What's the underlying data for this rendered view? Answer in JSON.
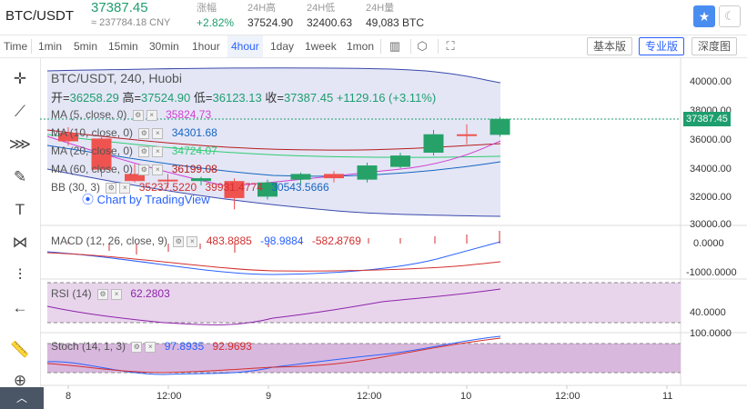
{
  "header": {
    "pair": "BTC/USDT",
    "price": "37387.45",
    "cny": "≈ 237784.18 CNY",
    "stats": [
      {
        "label": "涨幅",
        "value": "+2.82%",
        "up": true
      },
      {
        "label": "24H高",
        "value": "37524.90",
        "up": false
      },
      {
        "label": "24H低",
        "value": "32400.63",
        "up": false
      },
      {
        "label": "24H量",
        "value": "49,083 BTC",
        "up": false
      }
    ],
    "star_icon": "star-icon",
    "theme_icon": "moon-icon"
  },
  "toolbar": {
    "intervals": [
      "Time",
      "1min",
      "5min",
      "15min",
      "30min",
      "1hour",
      "4hour",
      "1day",
      "1week",
      "1mon"
    ],
    "active_interval": "4hour",
    "icons": [
      "candles-icon",
      "hexagon-settings-icon",
      "fullscreen-icon"
    ],
    "views": [
      "基本版",
      "专业版",
      "深度图"
    ],
    "active_view": "专业版"
  },
  "left_tools": [
    "crosshair-icon",
    "trend-line-icon",
    "fib-icon",
    "brush-icon",
    "text-icon",
    "pattern-icon",
    "measure-icon",
    "back-arrow-icon",
    "ruler-icon",
    "zoom-icon"
  ],
  "main": {
    "title": "BTC/USDT, 240, Huobi",
    "ohlc": {
      "open_label": "开=",
      "open": "36258.29",
      "high_label": "高=",
      "high": "37524.90",
      "low_label": "低=",
      "low": "36123.13",
      "close_label": "收=",
      "close": "37387.45",
      "change": "+1129.16 (+3.11%)"
    },
    "indicators": [
      {
        "name": "MA (5, close, 0)",
        "value": "35824.73",
        "color": "#d13fd1"
      },
      {
        "name": "MA (10, close, 0)",
        "value": "34301.68",
        "color": "#1565c0"
      },
      {
        "name": "MA (20, close, 0)",
        "value": "34724.07",
        "color": "#2ecc71"
      },
      {
        "name": "MA (60, close, 0)",
        "value": "36199.08",
        "color": "#b71c1c"
      }
    ],
    "bb": {
      "name": "BB (30, 3)",
      "v1": "35237.5220",
      "v2": "39931.4774",
      "v3": "30543.5666",
      "c1": "#d32f2f",
      "c2": "#d32f2f",
      "c3": "#1565c0"
    },
    "watermark": "Chart by TradingView",
    "last_price": "37387.45",
    "y_ticks": [
      "40000.00",
      "38000.00",
      "36000.00",
      "34000.00",
      "32000.00",
      "30000.00"
    ]
  },
  "macd": {
    "name": "MACD (12, 26, close, 9)",
    "v1": "483.8885",
    "v2": "-98.9884",
    "v3": "-582.8769",
    "y_ticks": [
      "0.0000",
      "-1000.0000"
    ]
  },
  "rsi": {
    "name": "RSI (14)",
    "value": "62.2803",
    "y_ticks": [
      "40.0000"
    ]
  },
  "stoch": {
    "name": "Stoch (14, 1, 3)",
    "v1": "97.8935",
    "v2": "92.9693",
    "y_ticks": [
      "100.0000"
    ]
  },
  "x_axis": [
    "8",
    "12:00",
    "9",
    "12:00",
    "10",
    "12:00",
    "11"
  ],
  "chart_data": {
    "type": "candlestick",
    "title": "BTC/USDT, 240, Huobi",
    "ylim": [
      29500,
      41500
    ],
    "candles": [
      {
        "o": 36400,
        "h": 36800,
        "l": 35500,
        "c": 35800
      },
      {
        "o": 36000,
        "h": 36100,
        "l": 33300,
        "c": 33800
      },
      {
        "o": 33500,
        "h": 34200,
        "l": 32900,
        "c": 33000
      },
      {
        "o": 33100,
        "h": 33500,
        "l": 32500,
        "c": 33000
      },
      {
        "o": 33000,
        "h": 33300,
        "l": 32700,
        "c": 33200
      },
      {
        "o": 33000,
        "h": 33200,
        "l": 31000,
        "c": 31800
      },
      {
        "o": 31900,
        "h": 33100,
        "l": 31700,
        "c": 32900
      },
      {
        "o": 33100,
        "h": 33600,
        "l": 32800,
        "c": 33500
      },
      {
        "o": 33500,
        "h": 33700,
        "l": 32900,
        "c": 33200
      },
      {
        "o": 33100,
        "h": 34300,
        "l": 32900,
        "c": 34100
      },
      {
        "o": 34000,
        "h": 35000,
        "l": 33900,
        "c": 34800
      },
      {
        "o": 35000,
        "h": 36600,
        "l": 34800,
        "c": 36300
      },
      {
        "o": 36300,
        "h": 37000,
        "l": 35600,
        "c": 36200
      },
      {
        "o": 36258.29,
        "h": 37524.9,
        "l": 36123.13,
        "c": 37387.45
      }
    ]
  }
}
